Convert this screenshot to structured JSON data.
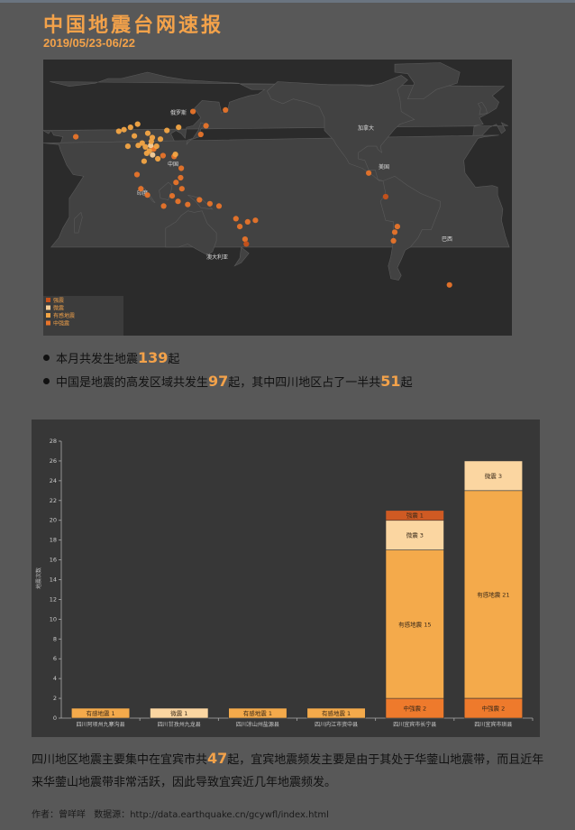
{
  "header": {
    "title": "中国地震台网速报",
    "date_range": "2019/05/23-06/22"
  },
  "map": {
    "labels": {
      "russia": "俄罗斯",
      "china": "中国",
      "india": "印度",
      "australia": "澳大利亚",
      "canada": "加拿大",
      "usa": "美国",
      "brazil": "巴西"
    },
    "legend": [
      "强震",
      "微震",
      "有感地震",
      "中强震"
    ],
    "colors": {
      "强震": "#c8521a",
      "微震": "#f7cf9a",
      "有感地震": "#f3a545",
      "中强震": "#e8742a"
    },
    "events": [
      {
        "lon": 103.8,
        "lat": 35.5,
        "type": "有感地震"
      },
      {
        "lon": 104.6,
        "lat": 28.4,
        "type": "有感地震"
      },
      {
        "lon": 104.9,
        "lat": 28.2,
        "type": "中强震"
      },
      {
        "lon": 102.5,
        "lat": 30.5,
        "type": "微震"
      },
      {
        "lon": 99.5,
        "lat": 25.5,
        "type": "有感地震"
      },
      {
        "lon": 100.3,
        "lat": 38.2,
        "type": "有感地震"
      },
      {
        "lon": 96.0,
        "lat": 32.0,
        "type": "有感地震"
      },
      {
        "lon": 98.5,
        "lat": 29.5,
        "type": "有感地震"
      },
      {
        "lon": 87.0,
        "lat": 42.0,
        "type": "有感地震"
      },
      {
        "lon": 82.0,
        "lat": 40.5,
        "type": "有感地震"
      },
      {
        "lon": 78.0,
        "lat": 39.5,
        "type": "有感地震"
      },
      {
        "lon": 90.0,
        "lat": 36.5,
        "type": "有感地震"
      },
      {
        "lon": 92.5,
        "lat": 44.0,
        "type": "有感地震"
      },
      {
        "lon": 110.0,
        "lat": 34.5,
        "type": "有感地震"
      },
      {
        "lon": 115.0,
        "lat": 40.0,
        "type": "有感地震"
      },
      {
        "lon": 112.0,
        "lat": 24.0,
        "type": "中强震"
      },
      {
        "lon": 120.5,
        "lat": 23.5,
        "type": "中强震"
      },
      {
        "lon": 121.5,
        "lat": 24.8,
        "type": "有感地震"
      },
      {
        "lon": 126.0,
        "lat": 16.0,
        "type": "中强震"
      },
      {
        "lon": 125.5,
        "lat": 10.0,
        "type": "中强震"
      },
      {
        "lon": 122.0,
        "lat": 7.0,
        "type": "中强震"
      },
      {
        "lon": 126.5,
        "lat": 3.0,
        "type": "中强震"
      },
      {
        "lon": 119.0,
        "lat": -1.5,
        "type": "中强震"
      },
      {
        "lon": 123.5,
        "lat": -5.0,
        "type": "中强震"
      },
      {
        "lon": 131.0,
        "lat": -7.0,
        "type": "中强震"
      },
      {
        "lon": 112.5,
        "lat": -8.0,
        "type": "中强震"
      },
      {
        "lon": 140.0,
        "lat": -4.0,
        "type": "中强震"
      },
      {
        "lon": 141.0,
        "lat": 37.5,
        "type": "中强震"
      },
      {
        "lon": 145.0,
        "lat": 43.0,
        "type": "中强震"
      },
      {
        "lon": 160.0,
        "lat": 53.0,
        "type": "中强震"
      },
      {
        "lon": 148.0,
        "lat": -6.5,
        "type": "中强震"
      },
      {
        "lon": 155.0,
        "lat": -8.0,
        "type": "中强震"
      },
      {
        "lon": 168.0,
        "lat": -16.0,
        "type": "中强震"
      },
      {
        "lon": 171.0,
        "lat": -21.0,
        "type": "中强震"
      },
      {
        "lon": 177.0,
        "lat": -18.0,
        "type": "中强震"
      },
      {
        "lon": -177.0,
        "lat": -17.0,
        "type": "中强震"
      },
      {
        "lon": 175.0,
        "lat": -29.0,
        "type": "中强震"
      },
      {
        "lon": 176.0,
        "lat": -32.0,
        "type": "强震"
      },
      {
        "lon": 95.0,
        "lat": 3.0,
        "type": "中强震"
      },
      {
        "lon": 100.0,
        "lat": -1.0,
        "type": "中强震"
      },
      {
        "lon": 92.0,
        "lat": 12.0,
        "type": "中强震"
      },
      {
        "lon": 97.5,
        "lat": 20.5,
        "type": "有感地震"
      },
      {
        "lon": 45.0,
        "lat": 36.0,
        "type": "中强震"
      },
      {
        "lon": 135.0,
        "lat": 52.0,
        "type": "中强震"
      },
      {
        "lon": 124.0,
        "lat": 42.0,
        "type": "有感地震"
      },
      {
        "lon": 108.0,
        "lat": 22.0,
        "type": "有感地震"
      },
      {
        "lon": 104.0,
        "lat": 24.5,
        "type": "微震"
      },
      {
        "lon": 101.5,
        "lat": 27.0,
        "type": "有感地震"
      },
      {
        "lon": 103.0,
        "lat": 33.0,
        "type": "有感地震"
      },
      {
        "lon": 107.0,
        "lat": 30.0,
        "type": "有感地震"
      },
      {
        "lon": 93.0,
        "lat": 30.5,
        "type": "有感地震"
      },
      {
        "lon": 85.0,
        "lat": 30.0,
        "type": "有感地震"
      },
      {
        "lon": -90.0,
        "lat": 13.0,
        "type": "中强震"
      },
      {
        "lon": -77.0,
        "lat": -2.0,
        "type": "强震"
      },
      {
        "lon": -70.0,
        "lat": -24.5,
        "type": "中强震"
      },
      {
        "lon": -71.0,
        "lat": -30.0,
        "type": "中强震"
      },
      {
        "lon": -68.0,
        "lat": -21.0,
        "type": "中强震"
      },
      {
        "lon": -28.0,
        "lat": -58.0,
        "type": "中强震"
      }
    ]
  },
  "stats": {
    "line1_prefix": "本月共发生地震",
    "line1_num": "139",
    "line1_suffix": "起",
    "line2_prefix": "中国是地震的高发区域共发生",
    "line2_num": "97",
    "line2_mid": "起，其中四川地区占了一半共",
    "line2_num2": "51",
    "line2_suffix": "起"
  },
  "chart_data": {
    "type": "bar",
    "stacked": true,
    "ylabel": "地震次数",
    "ylim": [
      0,
      28
    ],
    "yticks": [
      0,
      2,
      4,
      6,
      8,
      10,
      12,
      14,
      16,
      18,
      20,
      22,
      24,
      26,
      28
    ],
    "categories": [
      "四川阿坝州九寨沟县",
      "四川甘孜州九龙县",
      "四川凉山州盐源县",
      "四川内江市资中县",
      "四川宜宾市长宁县",
      "四川宜宾市珙县"
    ],
    "series": [
      {
        "name": "中强震",
        "values": [
          0,
          0,
          0,
          0,
          2,
          2
        ]
      },
      {
        "name": "有感地震",
        "values": [
          1,
          0,
          1,
          1,
          15,
          21
        ]
      },
      {
        "name": "微震",
        "values": [
          0,
          1,
          0,
          0,
          3,
          3
        ]
      },
      {
        "name": "强震",
        "values": [
          0,
          0,
          0,
          0,
          1,
          0
        ]
      }
    ],
    "colors": {
      "中强震": "#ee7a2c",
      "有感地震": "#f4aa4b",
      "微震": "#fbd6a1",
      "强震": "#cf5a23"
    }
  },
  "paragraph": {
    "part1": "四川地区地震主要集中在宜宾市共",
    "num": "47",
    "part2": "起，宜宾地震频发主要是由于其处于华蓥山地震带，而且近年来华蓥山地震带非常活跃，因此导致宜宾近几年地震频发。"
  },
  "footer": {
    "author_label": "作者：",
    "author": "曾咩咩",
    "source_label": "数据源：",
    "source": "http://data.earthquake.cn/gcywfl/index.html"
  }
}
